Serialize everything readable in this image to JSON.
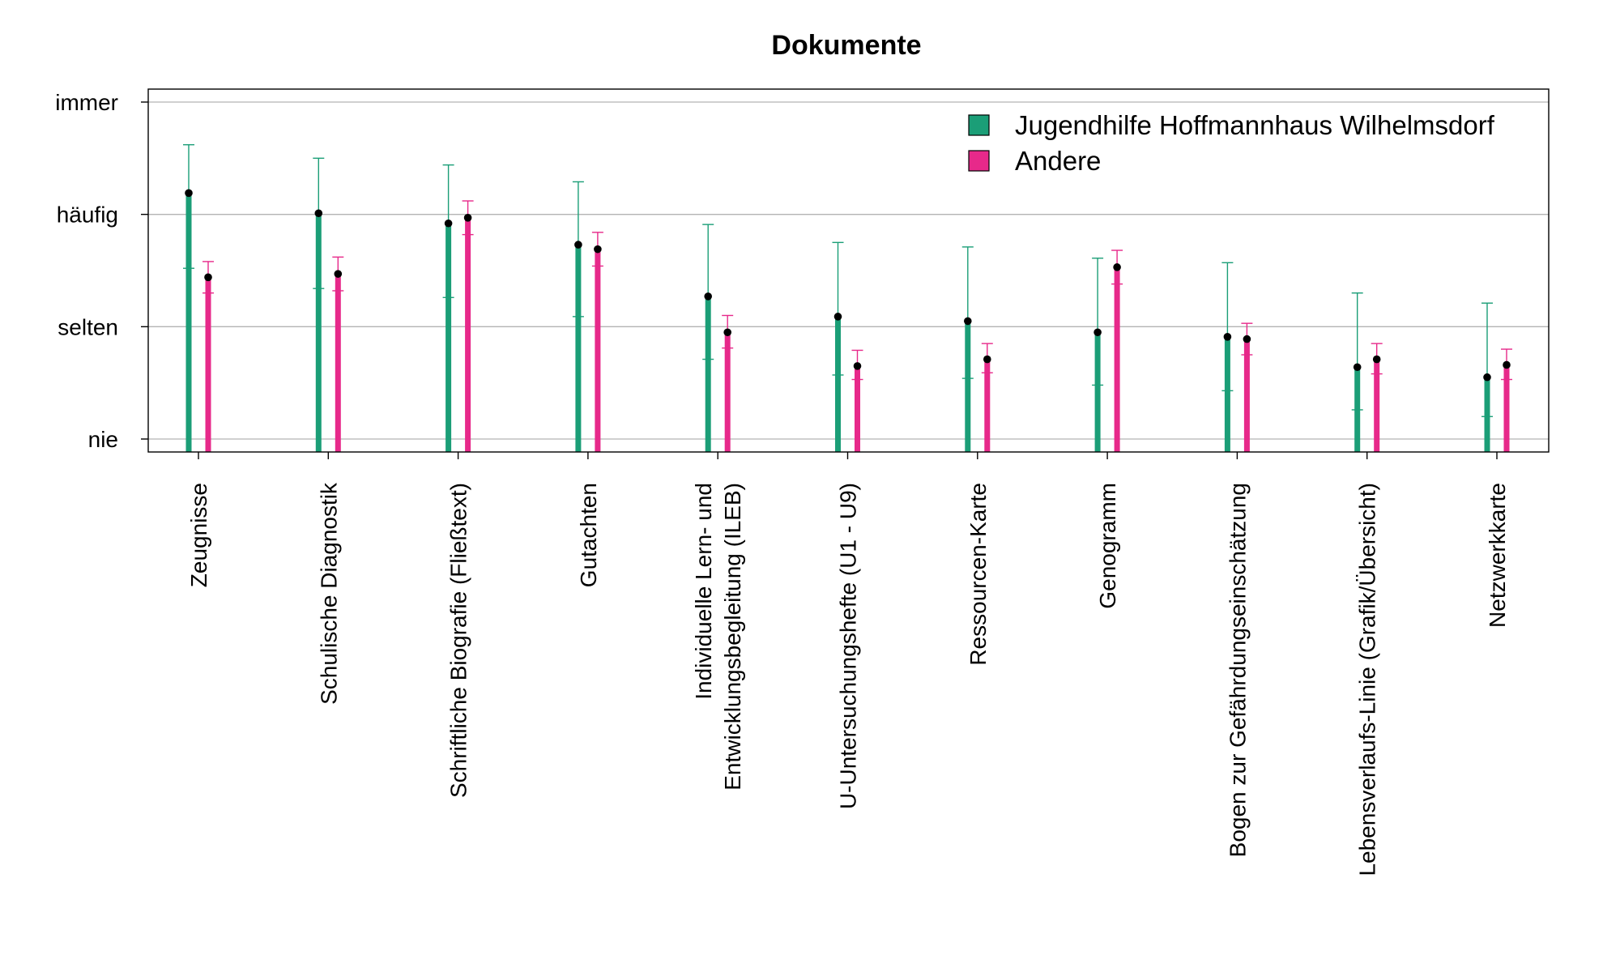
{
  "chart_data": {
    "type": "bar",
    "title": "Dokumente",
    "xlabel": "",
    "ylabel": "",
    "y_scale": {
      "min": 0,
      "max": 3,
      "ticks": [
        {
          "value": 0,
          "label": "nie"
        },
        {
          "value": 1,
          "label": "selten"
        },
        {
          "value": 2,
          "label": "häufig"
        },
        {
          "value": 3,
          "label": "immer"
        }
      ]
    },
    "grid": true,
    "legend_position": "top-right",
    "categories": [
      [
        "Zeugnisse"
      ],
      [
        "Schulische Diagnostik"
      ],
      [
        "Schriftliche Biografie (Fließtext)"
      ],
      [
        "Gutachten"
      ],
      [
        "Individuelle Lern- und",
        "Entwicklungsbegleitung (ILEB)"
      ],
      [
        "U-Untersuchungshefte (U1 - U9)"
      ],
      [
        "Ressourcen-Karte"
      ],
      [
        "Genogramm"
      ],
      [
        "Bogen zur Gefährdungseinschätzung"
      ],
      [
        "Lebensverlaufs-Linie (Grafik/Übersicht)"
      ],
      [
        "Netzwerkkarte"
      ]
    ],
    "series": [
      {
        "name": "Jugendhilfe Hoffmannhaus Wilhelmsdorf",
        "color": "#1b9e77",
        "values": [
          2.19,
          2.01,
          1.92,
          1.73,
          1.27,
          1.09,
          1.05,
          0.95,
          0.91,
          0.64,
          0.55
        ],
        "err_high": [
          2.62,
          2.5,
          2.44,
          2.29,
          1.91,
          1.75,
          1.71,
          1.61,
          1.57,
          1.3,
          1.21
        ],
        "err_low": [
          1.52,
          1.34,
          1.26,
          1.09,
          0.71,
          0.57,
          0.54,
          0.48,
          0.43,
          0.26,
          0.2
        ]
      },
      {
        "name": "Andere",
        "color": "#e7298a",
        "values": [
          1.44,
          1.47,
          1.97,
          1.69,
          0.95,
          0.65,
          0.71,
          1.53,
          0.89,
          0.71,
          0.66
        ],
        "err_high": [
          1.58,
          1.62,
          2.12,
          1.84,
          1.1,
          0.79,
          0.85,
          1.68,
          1.03,
          0.85,
          0.8
        ],
        "err_low": [
          1.3,
          1.32,
          1.82,
          1.54,
          0.81,
          0.53,
          0.59,
          1.38,
          0.75,
          0.58,
          0.53
        ]
      }
    ]
  }
}
